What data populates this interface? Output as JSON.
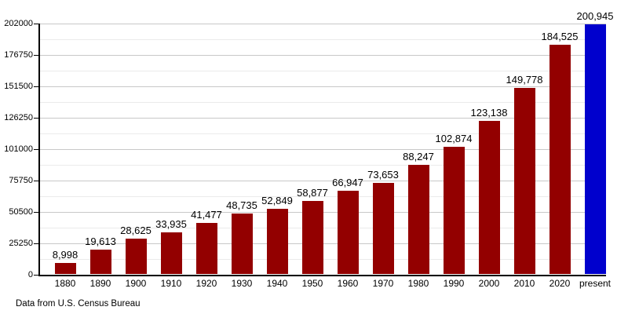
{
  "chart_data": {
    "type": "bar",
    "title": "",
    "xlabel": "",
    "ylabel": "",
    "categories": [
      "1880",
      "1890",
      "1900",
      "1910",
      "1920",
      "1930",
      "1940",
      "1950",
      "1960",
      "1970",
      "1980",
      "1990",
      "2000",
      "2010",
      "2020",
      "present"
    ],
    "values": [
      8998,
      19613,
      28625,
      33935,
      41477,
      48735,
      52849,
      58877,
      66947,
      73653,
      88247,
      102874,
      123138,
      149778,
      184525,
      200945
    ],
    "value_labels": [
      "8,998",
      "19,613",
      "28,625",
      "33,935",
      "41,477",
      "48,735",
      "52,849",
      "58,877",
      "66,947",
      "73,653",
      "88,247",
      "102,874",
      "123,138",
      "149,778",
      "184,525",
      "200,945"
    ],
    "ylim": [
      0,
      202000
    ],
    "y_major_step": 25250,
    "y_minor_step": 12625,
    "y_tick_labels": [
      "0",
      "25250",
      "50500",
      "75750",
      "101000",
      "126250",
      "151500",
      "176750",
      "202000"
    ],
    "grid": "horizontal-major-and-minor",
    "legend": "none",
    "highlight_index": 15,
    "colors": {
      "bar": "#930000",
      "highlight_bar": "#0000CD",
      "grid_major": "#c8c8c8",
      "grid_minor": "#ebebeb",
      "axis": "#000000",
      "background": "#ffffff",
      "text": "#000000"
    }
  },
  "footer": {
    "note": "Data from U.S. Census Bureau"
  }
}
